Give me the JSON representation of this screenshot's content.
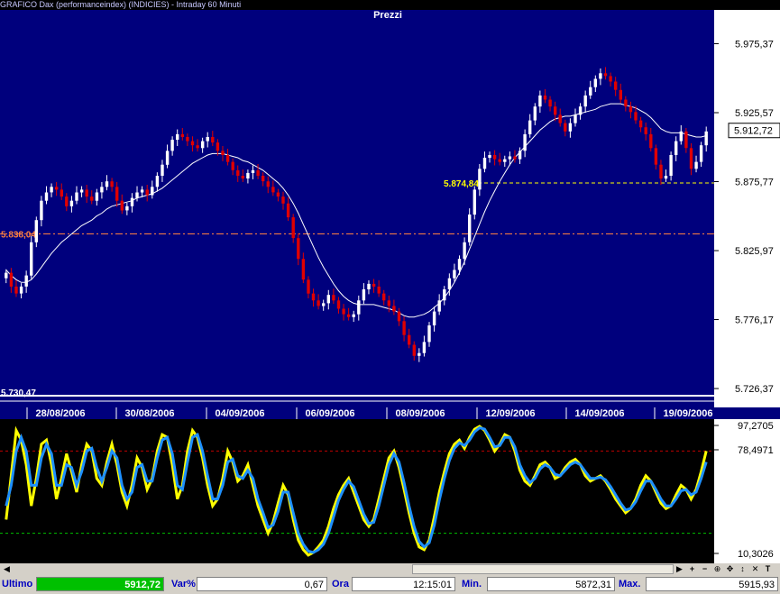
{
  "window": {
    "title": "GRAFICO Dax (performanceindex) (INDICIES) - Intraday 60 Minuti"
  },
  "chart_data": [
    {
      "type": "candlestick",
      "title": "Prezzi",
      "ylim": [
        5716,
        5990
      ],
      "yticks": [
        "5.975,37",
        "5.925,57",
        "5.875,77",
        "5.825,97",
        "5.776,17",
        "5.726,37"
      ],
      "ytick_values": [
        5975.37,
        5925.57,
        5875.77,
        5825.97,
        5776.17,
        5726.37
      ],
      "last_price_label": "5.912,72",
      "last_price": 5912.72,
      "x_labels": [
        "28/08/2006",
        "30/08/2006",
        "04/09/2006",
        "06/09/2006",
        "08/09/2006",
        "12/09/2006",
        "14/09/2006",
        "19/09/2006"
      ],
      "levels": [
        {
          "label": "5.874,84",
          "value": 5874.84,
          "color": "#ffff00"
        },
        {
          "label": "5.838,04",
          "value": 5838.04,
          "color": "#ff8040"
        },
        {
          "label": "5.730,47",
          "value": 5730.47,
          "color": "#ffffff"
        }
      ],
      "close": [
        5810,
        5800,
        5795,
        5800,
        5808,
        5832,
        5848,
        5862,
        5868,
        5872,
        5870,
        5865,
        5858,
        5862,
        5868,
        5870,
        5865,
        5862,
        5868,
        5872,
        5876,
        5872,
        5862,
        5855,
        5858,
        5864,
        5868,
        5870,
        5866,
        5872,
        5880,
        5888,
        5898,
        5906,
        5910,
        5908,
        5905,
        5902,
        5900,
        5905,
        5908,
        5904,
        5898,
        5895,
        5890,
        5884,
        5880,
        5878,
        5882,
        5884,
        5880,
        5876,
        5872,
        5868,
        5865,
        5860,
        5850,
        5835,
        5820,
        5805,
        5795,
        5790,
        5786,
        5788,
        5794,
        5790,
        5784,
        5780,
        5778,
        5780,
        5790,
        5798,
        5802,
        5800,
        5795,
        5790,
        5786,
        5782,
        5775,
        5765,
        5758,
        5750,
        5752,
        5760,
        5772,
        5782,
        5790,
        5798,
        5806,
        5812,
        5820,
        5832,
        5852,
        5870,
        5885,
        5893,
        5895,
        5892,
        5890,
        5892,
        5894,
        5892,
        5898,
        5910,
        5920,
        5930,
        5938,
        5935,
        5930,
        5924,
        5918,
        5912,
        5918,
        5924,
        5930,
        5938,
        5944,
        5950,
        5954,
        5952,
        5948,
        5942,
        5935,
        5930,
        5926,
        5920,
        5915,
        5910,
        5900,
        5888,
        5878,
        5880,
        5895,
        5905,
        5912,
        5900,
        5885,
        5890,
        5902,
        5912
      ],
      "ma": [
        5812,
        5808,
        5805,
        5803,
        5803,
        5805,
        5809,
        5814,
        5819,
        5824,
        5828,
        5832,
        5835,
        5838,
        5841,
        5844,
        5846,
        5848,
        5851,
        5853,
        5856,
        5858,
        5859,
        5860,
        5861,
        5862,
        5864,
        5865,
        5866,
        5867,
        5869,
        5871,
        5874,
        5877,
        5880,
        5883,
        5886,
        5889,
        5891,
        5893,
        5895,
        5896,
        5896,
        5896,
        5895,
        5894,
        5893,
        5891,
        5890,
        5888,
        5886,
        5884,
        5881,
        5878,
        5875,
        5871,
        5866,
        5860,
        5853,
        5845,
        5837,
        5829,
        5821,
        5814,
        5808,
        5802,
        5797,
        5793,
        5790,
        5788,
        5787,
        5787,
        5787,
        5787,
        5786,
        5785,
        5784,
        5783,
        5781,
        5779,
        5778,
        5778,
        5779,
        5780,
        5782,
        5785,
        5788,
        5792,
        5797,
        5803,
        5810,
        5818,
        5827,
        5836,
        5845,
        5854,
        5862,
        5869,
        5876,
        5882,
        5888,
        5893,
        5897,
        5901,
        5905,
        5909,
        5913,
        5916,
        5919,
        5921,
        5922,
        5923,
        5923,
        5924,
        5925,
        5926,
        5927,
        5928,
        5930,
        5931,
        5932,
        5932,
        5932,
        5931,
        5930,
        5929,
        5927,
        5925,
        5922,
        5918,
        5914,
        5912,
        5911,
        5911,
        5911,
        5910,
        5909,
        5908,
        5908,
        5909
      ],
      "stoch_yticks": [
        "97,2705",
        "78,4971",
        "10,3026"
      ],
      "stoch_ylim": [
        0,
        100
      ],
      "stoch_levels": [
        80,
        20
      ],
      "stoch_fast": [
        30,
        62,
        95,
        88,
        70,
        40,
        60,
        85,
        88,
        70,
        45,
        60,
        78,
        65,
        50,
        70,
        85,
        80,
        60,
        55,
        72,
        85,
        70,
        50,
        40,
        55,
        75,
        68,
        52,
        60,
        80,
        92,
        90,
        70,
        45,
        55,
        80,
        95,
        90,
        75,
        55,
        40,
        45,
        60,
        80,
        72,
        58,
        62,
        70,
        55,
        40,
        30,
        20,
        28,
        42,
        55,
        48,
        30,
        15,
        8,
        4,
        6,
        10,
        15,
        25,
        38,
        48,
        55,
        60,
        50,
        40,
        30,
        25,
        30,
        45,
        60,
        75,
        80,
        68,
        52,
        35,
        20,
        10,
        8,
        15,
        32,
        50,
        65,
        78,
        85,
        88,
        82,
        90,
        96,
        98,
        95,
        88,
        80,
        85,
        92,
        90,
        80,
        66,
        58,
        55,
        62,
        70,
        72,
        68,
        60,
        62,
        68,
        72,
        74,
        70,
        62,
        58,
        60,
        62,
        58,
        52,
        45,
        40,
        35,
        38,
        45,
        55,
        62,
        58,
        50,
        42,
        38,
        40,
        48,
        55,
        52,
        45,
        52,
        65,
        80
      ],
      "stoch_slow": [
        40,
        55,
        80,
        90,
        80,
        55,
        55,
        75,
        85,
        78,
        55,
        55,
        70,
        68,
        55,
        65,
        80,
        82,
        68,
        58,
        68,
        80,
        75,
        55,
        45,
        50,
        68,
        70,
        58,
        58,
        75,
        88,
        90,
        78,
        55,
        52,
        72,
        90,
        92,
        80,
        62,
        45,
        45,
        55,
        72,
        74,
        62,
        60,
        66,
        60,
        45,
        35,
        24,
        26,
        36,
        50,
        50,
        35,
        20,
        12,
        7,
        6,
        8,
        12,
        20,
        32,
        44,
        52,
        58,
        54,
        44,
        34,
        27,
        28,
        40,
        55,
        70,
        78,
        72,
        57,
        40,
        25,
        14,
        10,
        13,
        26,
        44,
        60,
        73,
        82,
        86,
        84,
        88,
        94,
        97,
        96,
        90,
        83,
        84,
        90,
        90,
        83,
        70,
        62,
        57,
        60,
        67,
        70,
        68,
        63,
        62,
        66,
        70,
        72,
        70,
        65,
        60,
        60,
        61,
        59,
        54,
        48,
        42,
        37,
        38,
        43,
        51,
        58,
        58,
        52,
        45,
        40,
        40,
        45,
        51,
        52,
        48,
        50,
        60,
        72
      ]
    }
  ],
  "status": {
    "last_label": "Ultimo",
    "last_value": "5912,72",
    "var_label": "Var%",
    "var_value": "0,67",
    "time_label": "Ora",
    "time_value": "12:15:01",
    "min_label": "Min.",
    "min_value": "5872,31",
    "max_label": "Max.",
    "max_value": "5915,93"
  },
  "toolbar": {
    "zoom_in": "+",
    "zoom_out": "−",
    "text_tool": "T"
  },
  "colors": {
    "price_bg": "#00007d",
    "up": "#ffffff",
    "down": "#e00000",
    "ma": "#ffffff",
    "fast": "#ffff00",
    "slow": "#1e90ff",
    "axis_text": "#000000"
  }
}
